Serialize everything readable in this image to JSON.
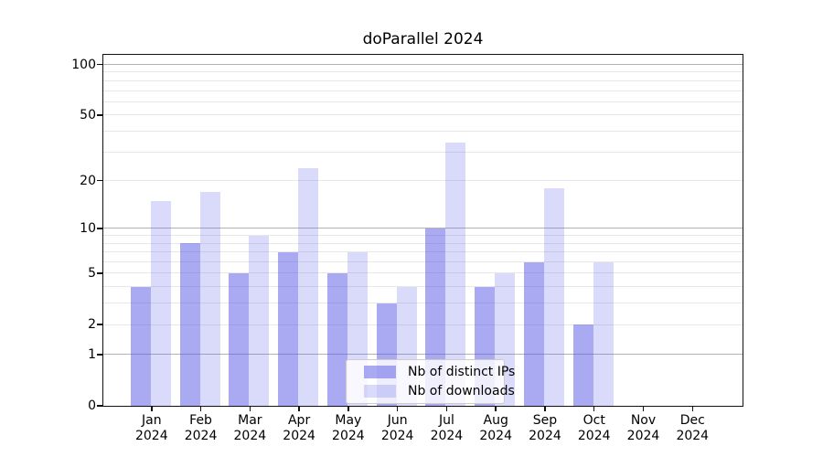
{
  "title": "doParallel 2024",
  "legend": {
    "items": [
      {
        "label": "Nb of distinct IPs"
      },
      {
        "label": "Nb of downloads"
      }
    ]
  },
  "y_axis": {
    "tick_values": [
      100,
      50,
      20,
      10,
      5,
      2,
      1,
      0
    ],
    "tick_labels": [
      "100",
      "50",
      "20",
      "10",
      "5",
      "2",
      "1",
      "0"
    ],
    "major_gridlines": [
      1,
      10,
      100
    ],
    "minor_gridlines": [
      2,
      3,
      4,
      5,
      6,
      7,
      8,
      9,
      20,
      30,
      40,
      50,
      60,
      70,
      80,
      90
    ],
    "scale": "log1p",
    "top_value": 114
  },
  "x_axis": {
    "months": [
      "Jan",
      "Feb",
      "Mar",
      "Apr",
      "May",
      "Jun",
      "Jul",
      "Aug",
      "Sep",
      "Oct",
      "Nov",
      "Dec"
    ],
    "year": "2024"
  },
  "chart_data": {
    "type": "bar",
    "title": "doParallel 2024",
    "categories": [
      "Jan 2024",
      "Feb 2024",
      "Mar 2024",
      "Apr 2024",
      "May 2024",
      "Jun 2024",
      "Jul 2024",
      "Aug 2024",
      "Sep 2024",
      "Oct 2024",
      "Nov 2024",
      "Dec 2024"
    ],
    "series": [
      {
        "name": "Nb of distinct IPs",
        "values": [
          4,
          8,
          5,
          7,
          5,
          3,
          10,
          4,
          6,
          2,
          0,
          0
        ],
        "color": "rgba(85,85,230,0.50)"
      },
      {
        "name": "Nb of downloads",
        "values": [
          15,
          17,
          9,
          24,
          7,
          4,
          34,
          5,
          18,
          6,
          0,
          0
        ],
        "color": "rgba(85,85,230,0.22)"
      }
    ],
    "yscale": "log1p",
    "y_ticks": [
      0,
      1,
      2,
      5,
      10,
      20,
      50,
      100
    ],
    "ylim": [
      0,
      114
    ],
    "grid": true,
    "legend_position": "lower center"
  },
  "colors": {
    "bar_base": "#5555e6",
    "major_grid": "#b2b2b2",
    "minor_grid": "#e7e7e7",
    "axis": "#111111",
    "legend_border": "#cccccc",
    "legend_bg": "rgba(255,255,255,0.8)"
  }
}
